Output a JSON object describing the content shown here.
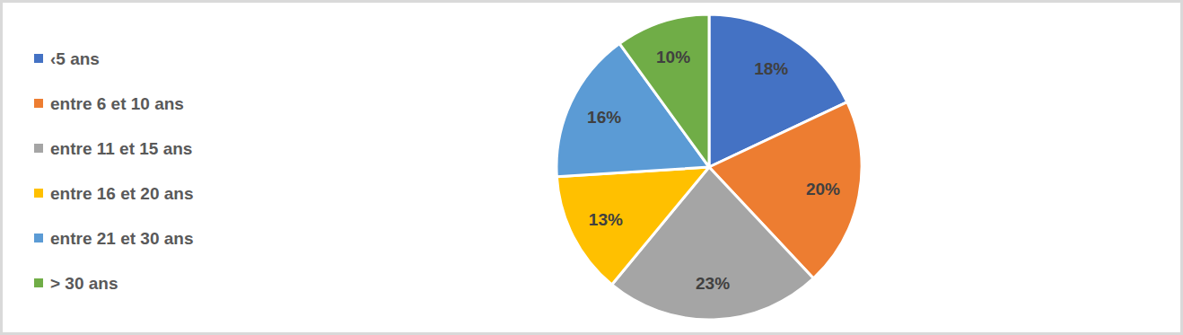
{
  "chart_data": {
    "type": "pie",
    "categories": [
      "‹5 ans",
      "entre 6 et 10 ans",
      "entre 11 et 15 ans",
      "entre 16 et 20 ans",
      "entre 21 et 30 ans",
      "> 30 ans"
    ],
    "values": [
      18,
      20,
      23,
      13,
      16,
      10
    ],
    "value_labels": [
      "18%",
      "20%",
      "23%",
      "13%",
      "16%",
      "10%"
    ],
    "colors": [
      "#4472c4",
      "#ed7d31",
      "#a5a5a5",
      "#ffc000",
      "#5b9bd5",
      "#70ad47"
    ],
    "data_labels": true,
    "legend": "left"
  }
}
